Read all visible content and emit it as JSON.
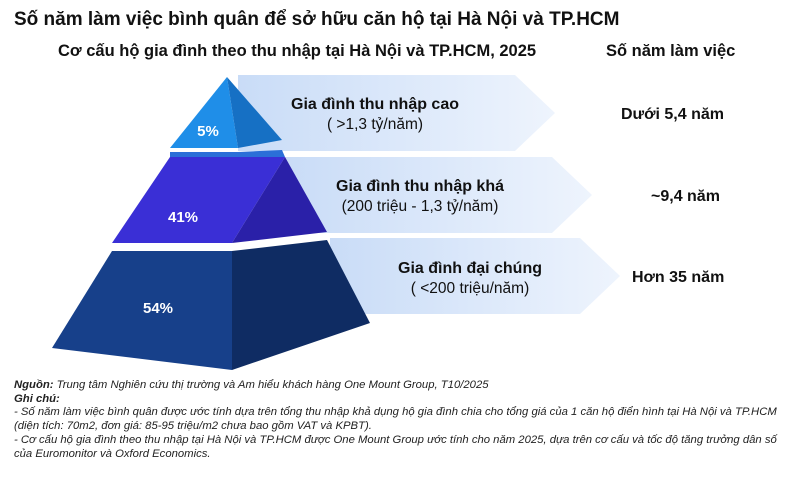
{
  "title": "Số năm làm việc bình quân để sở hữu căn hộ tại Hà Nội và TP.HCM",
  "subtitle": "Cơ cấu hộ gia đình theo thu nhập tại Hà Nội và TP.HCM, 2025",
  "years_header": "Số năm làm việc",
  "tiers": [
    {
      "name": "Gia đình thu nhập cao",
      "range": "( >1,3 tỷ/năm)",
      "percent": "5%",
      "years": "Dưới 5,4 năm"
    },
    {
      "name": "Gia đình thu nhập khá",
      "range": "(200 triệu - 1,3 tỷ/năm)",
      "percent": "41%",
      "years": "~9,4 năm"
    },
    {
      "name": "Gia đình đại chúng",
      "range": "( <200 triệu/năm)",
      "percent": "54%",
      "years": "Hơn 35 năm"
    }
  ],
  "notes": {
    "source_label": "Nguồn:",
    "source_text": "Trung tâm Nghiên cứu  thị trường và Am hiểu khách hàng One Mount Group, T10/2025",
    "note_label": "Ghi chú:",
    "note_1": "- Số năm làm việc bình quân được ước tính dựa trên tổng thu nhập khả dụng hộ gia đình chia cho tổng giá của 1 căn hộ điển hình tại Hà Nội và TP.HCM (diện tích: 70m2, đơn giá: 85-95 triệu/m2 chưa bao gồm VAT và KPBT).",
    "note_2": "- Cơ cấu hộ gia đình theo thu nhập tại Hà Nội và TP.HCM được One Mount Group ước tính cho năm 2025, dựa trên cơ cấu và tốc độ tăng trưởng dân số của Euromonitor và Oxford Economics."
  },
  "colors": {
    "tier_top": "#1f8ee8",
    "tier_top_side": "#1670c4",
    "tier_mid": "#3a2fd6",
    "tier_mid_side": "#2a20a8",
    "tier_bottom": "#17408a",
    "tier_bottom_side": "#0f2c63",
    "arrow": "#dbe8fb"
  }
}
